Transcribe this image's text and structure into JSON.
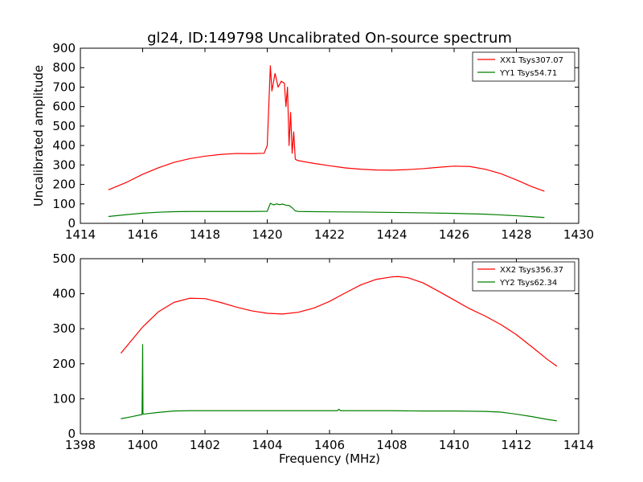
{
  "chart_data": [
    {
      "type": "line",
      "title": "gl24, ID:149798 Uncalibrated On-source spectrum",
      "xlabel": "",
      "ylabel": "Uncalibrated amplitude",
      "xlim": [
        1414,
        1430
      ],
      "ylim": [
        0,
        900
      ],
      "xticks": [
        "1414",
        "1416",
        "1418",
        "1420",
        "1422",
        "1424",
        "1426",
        "1428",
        "1430"
      ],
      "yticks": [
        "0",
        "100",
        "200",
        "300",
        "400",
        "500",
        "600",
        "700",
        "800",
        "900"
      ],
      "legend_position": "top-right",
      "series": [
        {
          "name": "XX1 Tsys307.07",
          "color": "#ff0000",
          "x": [
            1414.9,
            1415.5,
            1416.0,
            1416.5,
            1417.0,
            1417.5,
            1418.0,
            1418.5,
            1419.0,
            1419.5,
            1419.9,
            1420.0,
            1420.1,
            1420.15,
            1420.25,
            1420.35,
            1420.45,
            1420.55,
            1420.6,
            1420.65,
            1420.7,
            1420.75,
            1420.8,
            1420.85,
            1420.9,
            1420.95,
            1421.0,
            1421.5,
            1422.0,
            1422.5,
            1423.0,
            1423.5,
            1424.0,
            1424.5,
            1425.0,
            1425.5,
            1426.0,
            1426.5,
            1427.0,
            1427.5,
            1428.0,
            1428.5,
            1428.9
          ],
          "values": [
            172,
            212,
            252,
            285,
            313,
            332,
            345,
            354,
            359,
            358,
            360,
            400,
            810,
            680,
            770,
            700,
            730,
            720,
            600,
            700,
            400,
            570,
            360,
            470,
            330,
            325,
            322,
            308,
            296,
            285,
            278,
            274,
            273,
            276,
            281,
            288,
            294,
            292,
            278,
            255,
            223,
            188,
            165
          ]
        },
        {
          "name": "YY1 Tsys54.71",
          "color": "#008000",
          "x": [
            1414.9,
            1415.5,
            1416.0,
            1416.5,
            1417.0,
            1417.5,
            1418.0,
            1418.5,
            1419.0,
            1419.5,
            1420.0,
            1420.1,
            1420.2,
            1420.3,
            1420.4,
            1420.5,
            1420.6,
            1420.7,
            1420.8,
            1420.9,
            1421.0,
            1422.0,
            1423.0,
            1424.0,
            1425.0,
            1426.0,
            1427.0,
            1427.5,
            1428.0,
            1428.5,
            1428.9
          ],
          "values": [
            35,
            45,
            52,
            57,
            60,
            61,
            61,
            61,
            61,
            61,
            62,
            103,
            95,
            100,
            96,
            99,
            93,
            92,
            80,
            64,
            61,
            59,
            58,
            56,
            54,
            51,
            47,
            43,
            39,
            34,
            30
          ]
        }
      ]
    },
    {
      "type": "line",
      "title": "",
      "xlabel": "Frequency (MHz)",
      "ylabel": "",
      "xlim": [
        1398,
        1414
      ],
      "ylim": [
        0,
        500
      ],
      "xticks": [
        "1398",
        "1400",
        "1402",
        "1404",
        "1406",
        "1408",
        "1410",
        "1412",
        "1414"
      ],
      "yticks": [
        "0",
        "100",
        "200",
        "300",
        "400",
        "500"
      ],
      "legend_position": "top-right",
      "series": [
        {
          "name": "XX2 Tsys356.37",
          "color": "#ff0000",
          "x": [
            1399.3,
            1399.6,
            1400.0,
            1400.5,
            1401.0,
            1401.5,
            1402.0,
            1402.5,
            1403.0,
            1403.5,
            1404.0,
            1404.5,
            1405.0,
            1405.5,
            1406.0,
            1406.5,
            1407.0,
            1407.5,
            1408.0,
            1408.2,
            1408.5,
            1409.0,
            1409.5,
            1410.0,
            1410.5,
            1411.0,
            1411.5,
            1412.0,
            1412.5,
            1413.0,
            1413.3
          ],
          "values": [
            230,
            262,
            305,
            348,
            375,
            387,
            386,
            375,
            362,
            351,
            344,
            342,
            347,
            359,
            378,
            402,
            425,
            441,
            448,
            449,
            446,
            431,
            407,
            382,
            357,
            336,
            312,
            283,
            248,
            212,
            193
          ]
        },
        {
          "name": "YY2 Tsys62.34",
          "color": "#008000",
          "x": [
            1399.3,
            1399.6,
            1399.98,
            1399.99,
            1400.0,
            1400.01,
            1400.02,
            1400.5,
            1401.0,
            1401.5,
            1402.0,
            1403.0,
            1404.0,
            1405.0,
            1406.0,
            1406.25,
            1406.3,
            1406.35,
            1407.0,
            1408.0,
            1409.0,
            1410.0,
            1411.0,
            1411.5,
            1412.0,
            1412.5,
            1413.0,
            1413.3
          ],
          "values": [
            43,
            48,
            55,
            150,
            255,
            57,
            56,
            61,
            65,
            66,
            66,
            66,
            66,
            66,
            66,
            66,
            70,
            66,
            66,
            66,
            65,
            65,
            64,
            62,
            56,
            49,
            41,
            37
          ]
        }
      ]
    }
  ]
}
